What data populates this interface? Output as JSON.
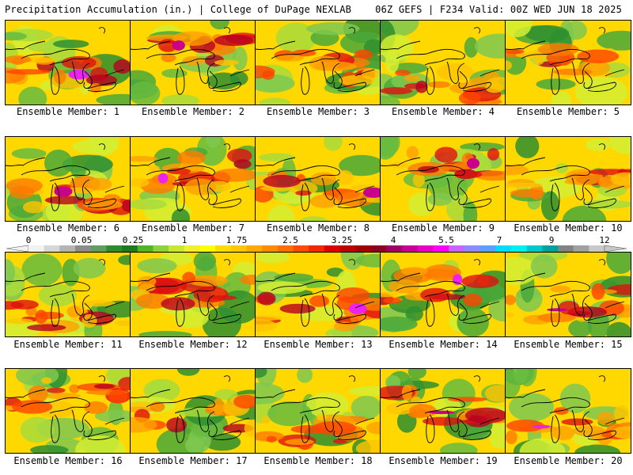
{
  "header": {
    "left": "Precipitation Accumulation (in.) | College of DuPage NEXLAB",
    "right": "06Z GEFS | F234 Valid: 00Z WED JUN 18 2025"
  },
  "colorbar": {
    "ticks": [
      "0",
      "0.05",
      "0.25",
      "1",
      "1.75",
      "2.5",
      "3.25",
      "4",
      "5.5",
      "7",
      "9",
      "12"
    ],
    "colors": [
      "#f2f2f2",
      "#d6d6d6",
      "#b4b4b4",
      "#8c8c8c",
      "#5e9e5e",
      "#2e8b2e",
      "#1f7a1f",
      "#50b428",
      "#8cd23c",
      "#c8e632",
      "#f0f032",
      "#ffff00",
      "#ffdc00",
      "#ffc800",
      "#ffaa00",
      "#ff8c00",
      "#ff6e00",
      "#ff4b00",
      "#f02800",
      "#dc0000",
      "#be0000",
      "#a00000",
      "#8c0028",
      "#a00064",
      "#c80096",
      "#e600c8",
      "#ff00ff",
      "#c864ff",
      "#8c8cff",
      "#5aa0ff",
      "#00dcff",
      "#00f0f0",
      "#00c8c8",
      "#00a0a0",
      "#828282",
      "#a0a0a0",
      "#c8c8c8"
    ]
  },
  "members": [
    {
      "label": "Ensemble Member: 1"
    },
    {
      "label": "Ensemble Member: 2"
    },
    {
      "label": "Ensemble Member: 3"
    },
    {
      "label": "Ensemble Member: 4"
    },
    {
      "label": "Ensemble Member: 5"
    },
    {
      "label": "Ensemble Member: 6"
    },
    {
      "label": "Ensemble Member: 7"
    },
    {
      "label": "Ensemble Member: 8"
    },
    {
      "label": "Ensemble Member: 9"
    },
    {
      "label": "Ensemble Member: 10"
    },
    {
      "label": "Ensemble Member: 11"
    },
    {
      "label": "Ensemble Member: 12"
    },
    {
      "label": "Ensemble Member: 13"
    },
    {
      "label": "Ensemble Member: 14"
    },
    {
      "label": "Ensemble Member: 15"
    },
    {
      "label": "Ensemble Member: 16"
    },
    {
      "label": "Ensemble Member: 17"
    },
    {
      "label": "Ensemble Member: 18"
    },
    {
      "label": "Ensemble Member: 19"
    },
    {
      "label": "Ensemble Member: 20"
    }
  ]
}
